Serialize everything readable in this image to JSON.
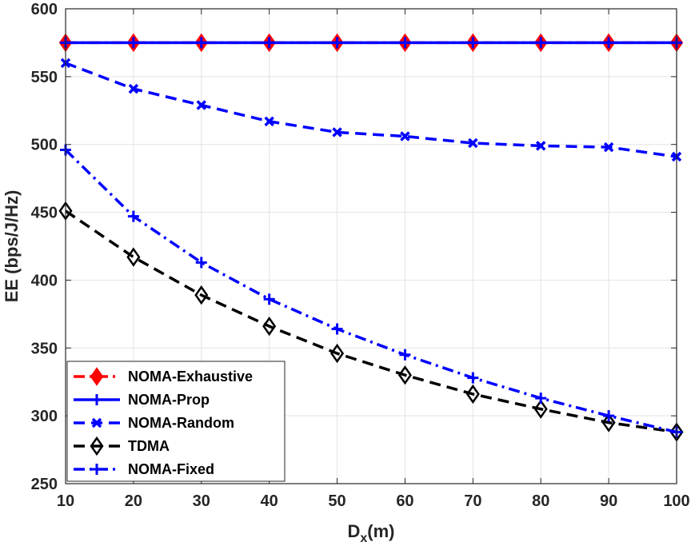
{
  "chart_data": {
    "type": "line",
    "xlabel_main": "D",
    "xlabel_sub": "x",
    "xlabel_tail": "(m)",
    "ylabel": "EE (bps/J/Hz)",
    "xlim": [
      10,
      100
    ],
    "ylim": [
      250,
      600
    ],
    "xticks": [
      "10",
      "20",
      "30",
      "40",
      "50",
      "60",
      "70",
      "80",
      "90",
      "100"
    ],
    "yticks": [
      "250",
      "300",
      "350",
      "400",
      "450",
      "500",
      "550",
      "600"
    ],
    "grid": true,
    "legend_position": "bottom-left",
    "x": [
      10,
      20,
      30,
      40,
      50,
      60,
      70,
      80,
      90,
      100
    ],
    "series": [
      {
        "name": "NOMA-Exhaustive",
        "color": "#ff0000",
        "dash": "dashdot",
        "marker": "diamond-filled",
        "values": [
          575,
          575,
          575,
          575,
          575,
          575,
          575,
          575,
          575,
          575
        ]
      },
      {
        "name": "NOMA-Prop",
        "color": "#0000ff",
        "dash": "solid",
        "marker": "plus",
        "values": [
          575,
          575,
          575,
          575,
          575,
          575,
          575,
          575,
          575,
          575
        ]
      },
      {
        "name": "NOMA-Random",
        "color": "#0000ff",
        "dash": "dashed",
        "marker": "x",
        "values": [
          560,
          541,
          529,
          517,
          509,
          506,
          501,
          499,
          498,
          491
        ]
      },
      {
        "name": "TDMA",
        "color": "#000000",
        "dash": "dashed",
        "marker": "diamond-open",
        "values": [
          451,
          417,
          389,
          366,
          346,
          330,
          316,
          305,
          295,
          288
        ]
      },
      {
        "name": "NOMA-Fixed",
        "color": "#0000ff",
        "dash": "dashdot",
        "marker": "plus",
        "values": [
          496,
          447,
          413,
          386,
          364,
          345,
          328,
          313,
          300,
          288
        ]
      }
    ]
  }
}
